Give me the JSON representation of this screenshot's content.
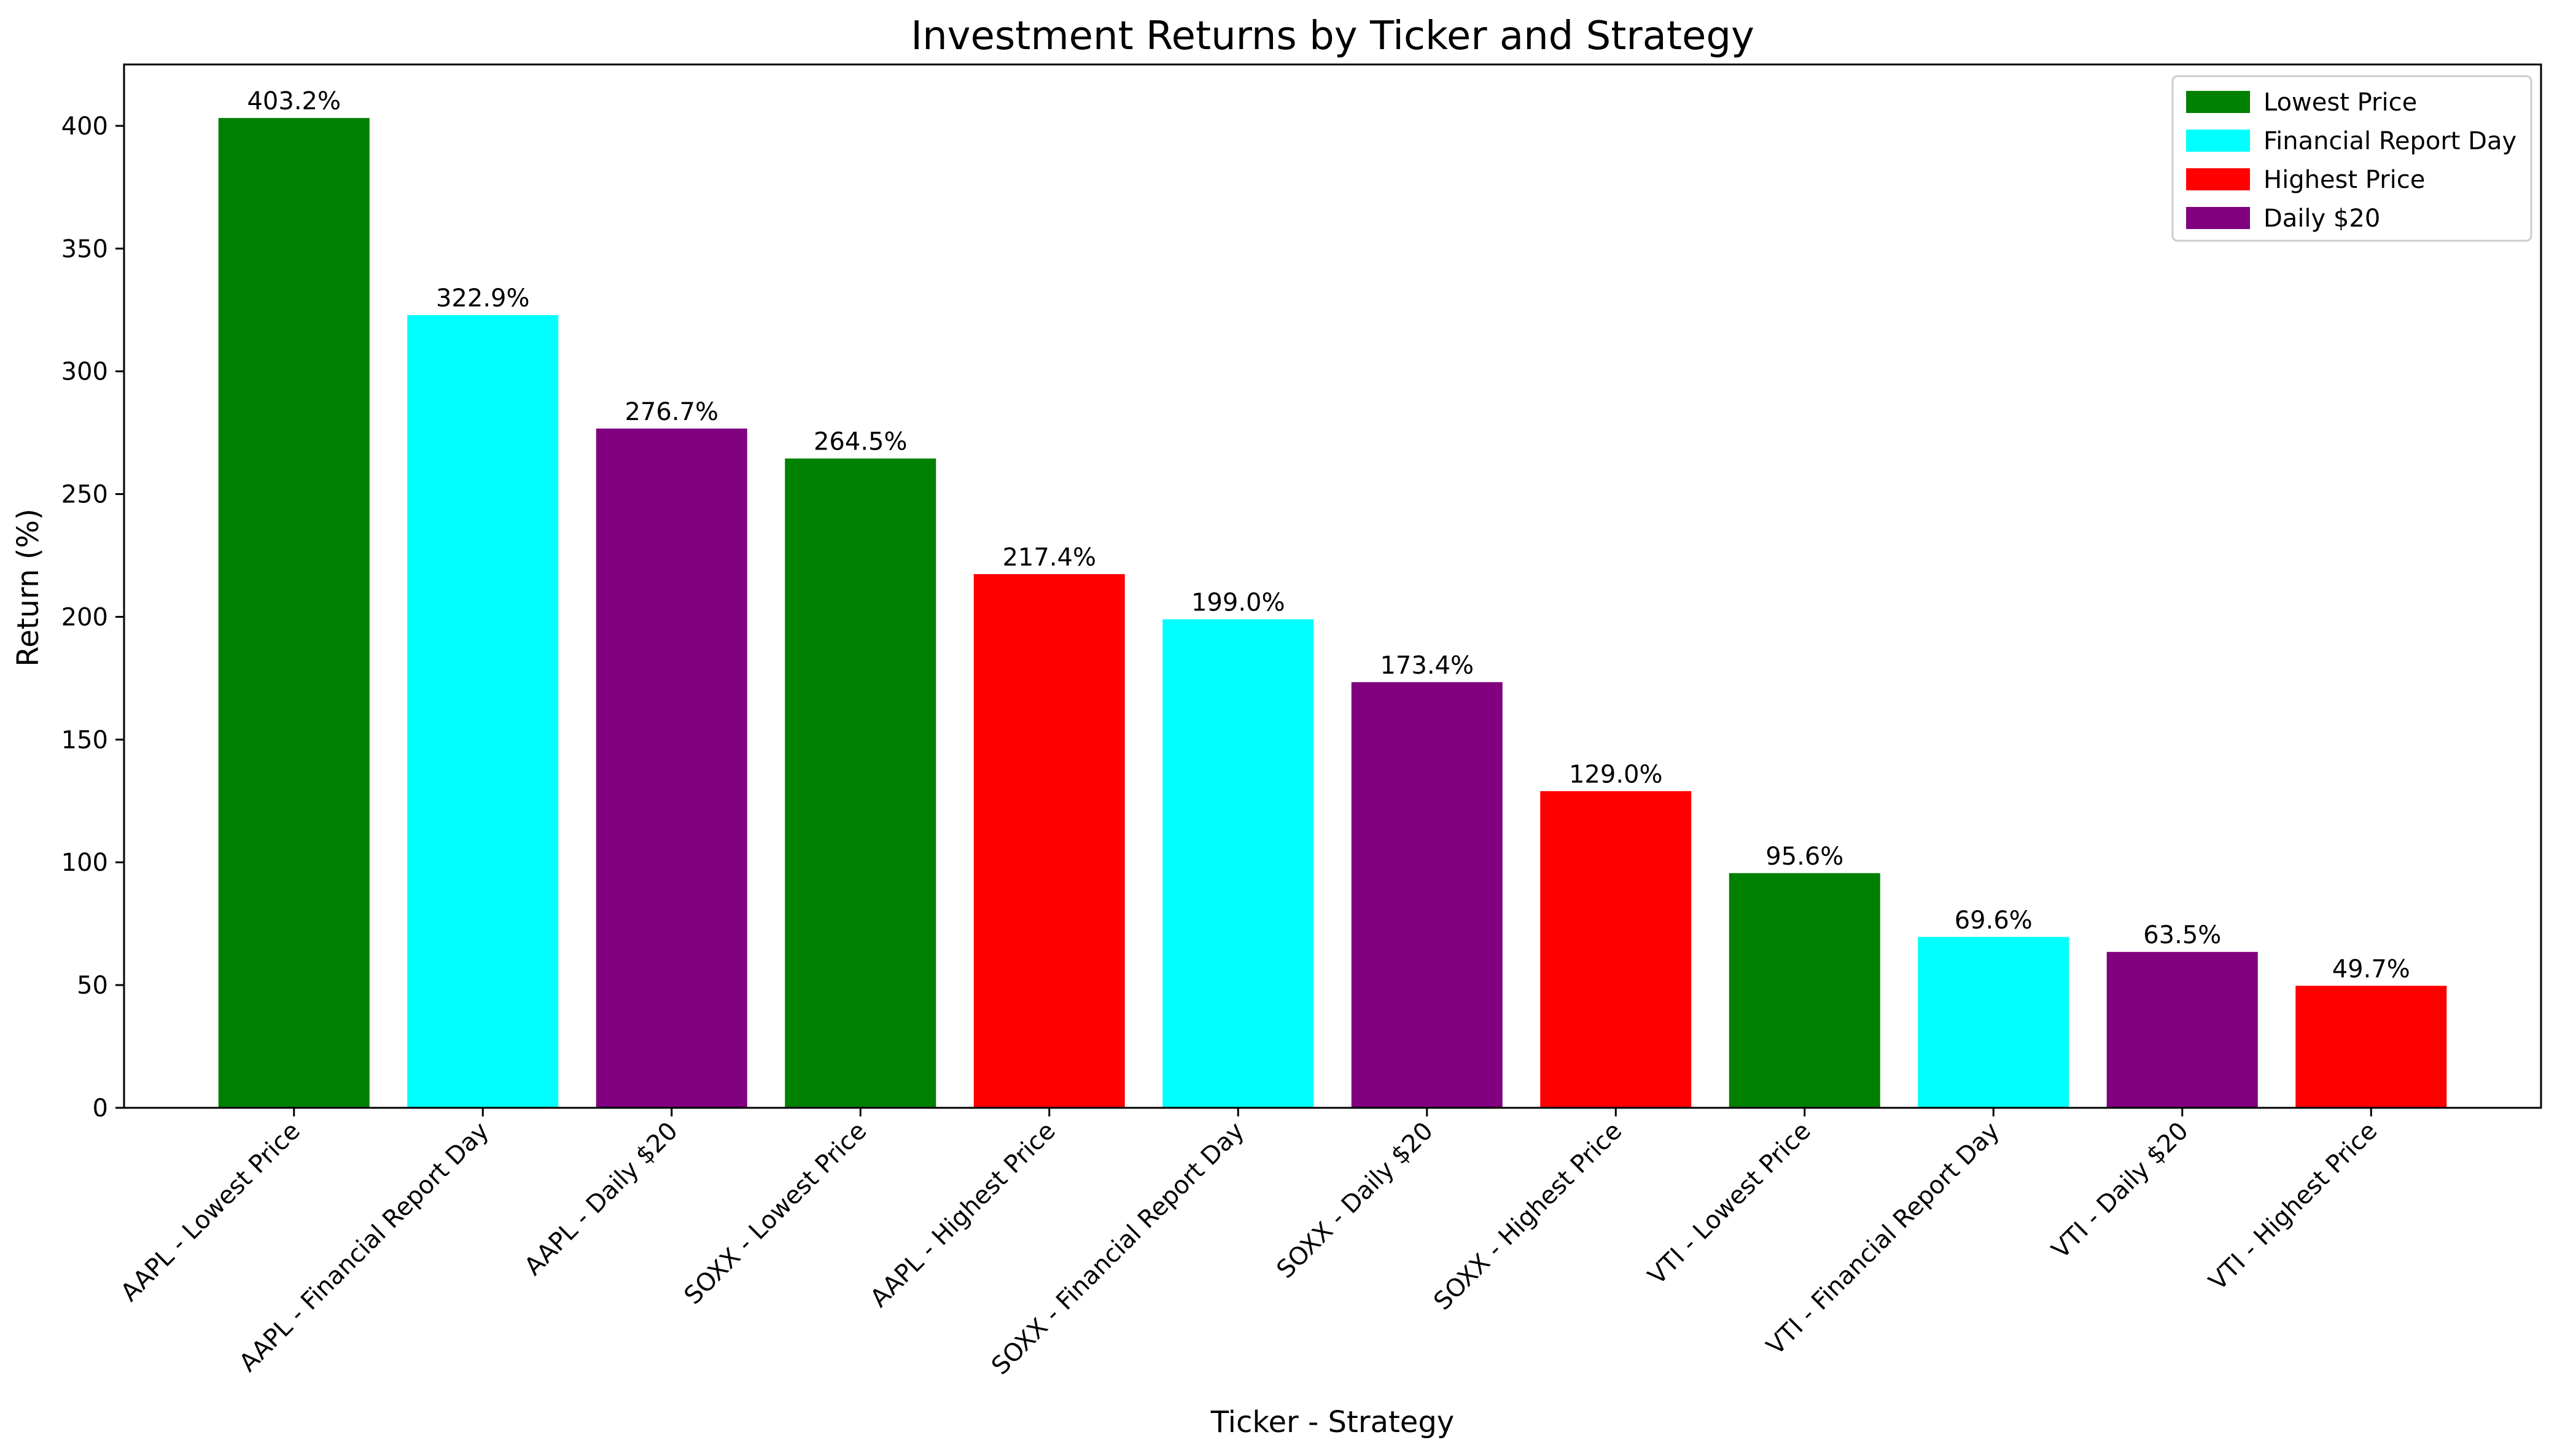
{
  "chart_data": {
    "type": "bar",
    "title": "Investment Returns by Ticker and Strategy",
    "xlabel": "Ticker - Strategy",
    "ylabel": "Return (%)",
    "ylim": [
      0,
      425
    ],
    "yticks": [
      0,
      50,
      100,
      150,
      200,
      250,
      300,
      350,
      400
    ],
    "grid": false,
    "legend_position": "top-right",
    "categories": [
      "AAPL - Lowest Price",
      "AAPL - Financial Report Day",
      "AAPL - Daily $20",
      "SOXX - Lowest Price",
      "AAPL - Highest Price",
      "SOXX - Financial Report Day",
      "SOXX - Daily $20",
      "SOXX - Highest Price",
      "VTI - Lowest Price",
      "VTI - Financial Report Day",
      "VTI - Daily $20",
      "VTI - Highest Price"
    ],
    "values": [
      403.2,
      322.9,
      276.7,
      264.5,
      217.4,
      199.0,
      173.4,
      129.0,
      95.6,
      69.6,
      63.5,
      49.7
    ],
    "data_labels": [
      "403.2%",
      "322.9%",
      "276.7%",
      "264.5%",
      "217.4%",
      "199.0%",
      "173.4%",
      "129.0%",
      "95.6%",
      "69.6%",
      "63.5%",
      "49.7%"
    ],
    "bar_strategy": [
      "Lowest Price",
      "Financial Report Day",
      "Daily $20",
      "Lowest Price",
      "Highest Price",
      "Financial Report Day",
      "Daily $20",
      "Highest Price",
      "Lowest Price",
      "Financial Report Day",
      "Daily $20",
      "Highest Price"
    ],
    "legend": [
      {
        "name": "Lowest Price",
        "color": "#008000"
      },
      {
        "name": "Financial Report Day",
        "color": "#00FFFF"
      },
      {
        "name": "Highest Price",
        "color": "#FF0000"
      },
      {
        "name": "Daily $20",
        "color": "#800080"
      }
    ]
  }
}
